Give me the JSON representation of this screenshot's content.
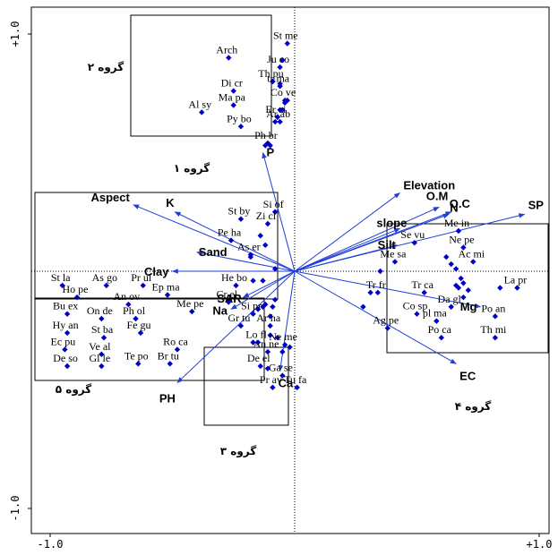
{
  "chart_data": {
    "type": "scatter",
    "title": "",
    "xlabel": "",
    "ylabel": "",
    "xlim": [
      -1.0,
      1.0
    ],
    "ylim": [
      -1.0,
      1.0
    ],
    "tick_labels": {
      "x_min": "-1.0",
      "x_max": "+1.0",
      "y_min": "-1.0",
      "y_max": "+1.0"
    },
    "colors": {
      "arrow": "#1f3fd6",
      "point": "#0000c8",
      "box": "#000000"
    },
    "env_variables": [
      {
        "name": "Elevation",
        "x": 0.43,
        "y": 0.33
      },
      {
        "name": "O.M",
        "x": 0.59,
        "y": 0.27
      },
      {
        "name": "O.C",
        "x": 0.64,
        "y": 0.25
      },
      {
        "name": "N",
        "x": 0.63,
        "y": 0.24
      },
      {
        "name": "SP",
        "x": 0.94,
        "y": 0.24
      },
      {
        "name": "slope",
        "x": 0.43,
        "y": 0.18
      },
      {
        "name": "Silt",
        "x": 0.42,
        "y": 0.11
      },
      {
        "name": "Aspect",
        "x": -0.66,
        "y": 0.28
      },
      {
        "name": "K",
        "x": -0.49,
        "y": 0.25
      },
      {
        "name": "Sand",
        "x": -0.4,
        "y": 0.08
      },
      {
        "name": "Clay",
        "x": -0.5,
        "y": 0.0
      },
      {
        "name": "SAR",
        "x": -0.21,
        "y": -0.11
      },
      {
        "name": "Na",
        "x": -0.26,
        "y": -0.16
      },
      {
        "name": "Mg",
        "x": 0.76,
        "y": -0.15
      },
      {
        "name": "EC",
        "x": 0.66,
        "y": -0.39
      },
      {
        "name": "Ca",
        "x": -0.06,
        "y": -0.42
      },
      {
        "name": "PH",
        "x": -0.48,
        "y": -0.47
      },
      {
        "name": "P",
        "x": -0.13,
        "y": 0.5
      }
    ],
    "species": [
      {
        "name": "Arch",
        "x": -0.27,
        "y": 0.9
      },
      {
        "name": "St me",
        "x": -0.03,
        "y": 0.96
      },
      {
        "name": "Ju co",
        "x": -0.06,
        "y": 0.86
      },
      {
        "name": "Th pu",
        "x": -0.09,
        "y": 0.8
      },
      {
        "name": "tr ma",
        "x": -0.06,
        "y": 0.78
      },
      {
        "name": "Di cr",
        "x": -0.25,
        "y": 0.76
      },
      {
        "name": "Co ve",
        "x": -0.04,
        "y": 0.72
      },
      {
        "name": "Ma pa",
        "x": -0.25,
        "y": 0.7
      },
      {
        "name": "Al sy",
        "x": -0.38,
        "y": 0.67
      },
      {
        "name": "Er ci",
        "x": -0.07,
        "y": 0.65
      },
      {
        "name": "Ar ab",
        "x": -0.06,
        "y": 0.63
      },
      {
        "name": "Py bo",
        "x": -0.22,
        "y": 0.61
      },
      {
        "name": "Ph br",
        "x": -0.11,
        "y": 0.54
      },
      {
        "name": "Si of",
        "x": -0.08,
        "y": 0.25
      },
      {
        "name": "St by",
        "x": -0.22,
        "y": 0.22
      },
      {
        "name": "Zi cl",
        "x": -0.11,
        "y": 0.2
      },
      {
        "name": "Pe ha",
        "x": -0.26,
        "y": 0.13
      },
      {
        "name": "As er",
        "x": -0.18,
        "y": 0.07
      },
      {
        "name": "He bo",
        "x": -0.24,
        "y": -0.06
      },
      {
        "name": "Cr el",
        "x": -0.27,
        "y": -0.13
      },
      {
        "name": "Me pe",
        "x": -0.42,
        "y": -0.17
      },
      {
        "name": "Si pr",
        "x": -0.17,
        "y": -0.18
      },
      {
        "name": "Gr tu",
        "x": -0.22,
        "y": -0.23
      },
      {
        "name": "Ar ha",
        "x": -0.1,
        "y": -0.23
      },
      {
        "name": "Lo fl",
        "x": -0.15,
        "y": -0.3
      },
      {
        "name": "Ne me",
        "x": -0.04,
        "y": -0.31
      },
      {
        "name": "An ne",
        "x": -0.11,
        "y": -0.34
      },
      {
        "name": "De el",
        "x": -0.14,
        "y": -0.4
      },
      {
        "name": "Ga se",
        "x": -0.05,
        "y": -0.44
      },
      {
        "name": "Pr av",
        "x": -0.09,
        "y": -0.49
      },
      {
        "name": "Tu fa",
        "x": 0.01,
        "y": -0.49
      },
      {
        "name": "St la",
        "x": -0.95,
        "y": -0.06
      },
      {
        "name": "As go",
        "x": -0.77,
        "y": -0.06
      },
      {
        "name": "Pr ul",
        "x": -0.62,
        "y": -0.06
      },
      {
        "name": "Ho pe",
        "x": -0.89,
        "y": -0.11
      },
      {
        "name": "An ov",
        "x": -0.68,
        "y": -0.14
      },
      {
        "name": "Ep ma",
        "x": -0.52,
        "y": -0.1
      },
      {
        "name": "Bu ex",
        "x": -0.93,
        "y": -0.18
      },
      {
        "name": "On de",
        "x": -0.79,
        "y": -0.2
      },
      {
        "name": "Ph ol",
        "x": -0.65,
        "y": -0.2
      },
      {
        "name": "Hy an",
        "x": -0.93,
        "y": -0.26
      },
      {
        "name": "Fe gu",
        "x": -0.63,
        "y": -0.26
      },
      {
        "name": "St ba",
        "x": -0.78,
        "y": -0.28
      },
      {
        "name": "Ro ca",
        "x": -0.48,
        "y": -0.33
      },
      {
        "name": "Ec pu",
        "x": -0.94,
        "y": -0.33
      },
      {
        "name": "Ve al",
        "x": -0.79,
        "y": -0.35
      },
      {
        "name": "Te po",
        "x": -0.64,
        "y": -0.39
      },
      {
        "name": "Br tu",
        "x": -0.51,
        "y": -0.39
      },
      {
        "name": "De so",
        "x": -0.93,
        "y": -0.4
      },
      {
        "name": "Gl le",
        "x": -0.79,
        "y": -0.4
      },
      {
        "name": "Me in",
        "x": 0.67,
        "y": 0.17
      },
      {
        "name": "Se vu",
        "x": 0.49,
        "y": 0.12
      },
      {
        "name": "Ne pe",
        "x": 0.69,
        "y": 0.1
      },
      {
        "name": "Me sa",
        "x": 0.41,
        "y": 0.04
      },
      {
        "name": "Ac mi",
        "x": 0.73,
        "y": 0.04
      },
      {
        "name": "Tr fr",
        "x": 0.34,
        "y": -0.09
      },
      {
        "name": "Tr ca",
        "x": 0.53,
        "y": -0.09
      },
      {
        "name": "La pr",
        "x": 0.91,
        "y": -0.07
      },
      {
        "name": "Da gl",
        "x": 0.64,
        "y": -0.15
      },
      {
        "name": "Co sp",
        "x": 0.5,
        "y": -0.18
      },
      {
        "name": "pl ma",
        "x": 0.58,
        "y": -0.21
      },
      {
        "name": "Po an",
        "x": 0.82,
        "y": -0.19
      },
      {
        "name": "Ag pe",
        "x": 0.38,
        "y": -0.24
      },
      {
        "name": "Po ca",
        "x": 0.6,
        "y": -0.28
      },
      {
        "name": "Th mi",
        "x": 0.82,
        "y": -0.28
      }
    ],
    "unlabeled_points": [
      {
        "x": -0.05,
        "y": 0.89
      },
      {
        "x": -0.09,
        "y": 0.8
      },
      {
        "x": -0.06,
        "y": 0.79
      },
      {
        "x": -0.04,
        "y": 0.71
      },
      {
        "x": -0.03,
        "y": 0.72
      },
      {
        "x": -0.05,
        "y": 0.68
      },
      {
        "x": -0.06,
        "y": 0.68
      },
      {
        "x": -0.08,
        "y": 0.63
      },
      {
        "x": -0.07,
        "y": 0.65
      },
      {
        "x": -0.12,
        "y": 0.53
      },
      {
        "x": -0.1,
        "y": 0.53
      },
      {
        "x": -0.14,
        "y": 0.15
      },
      {
        "x": -0.12,
        "y": 0.11
      },
      {
        "x": -0.18,
        "y": 0.06
      },
      {
        "x": -0.08,
        "y": 0.01
      },
      {
        "x": -0.17,
        "y": -0.04
      },
      {
        "x": -0.13,
        "y": -0.04
      },
      {
        "x": -0.08,
        "y": -0.12
      },
      {
        "x": -0.15,
        "y": -0.16
      },
      {
        "x": -0.13,
        "y": -0.15
      },
      {
        "x": -0.12,
        "y": -0.14
      },
      {
        "x": -0.1,
        "y": -0.19
      },
      {
        "x": -0.09,
        "y": -0.15
      },
      {
        "x": -0.1,
        "y": -0.27
      },
      {
        "x": -0.07,
        "y": -0.28
      },
      {
        "x": -0.02,
        "y": -0.32
      },
      {
        "x": -0.05,
        "y": -0.34
      },
      {
        "x": -0.17,
        "y": -0.3
      },
      {
        "x": -0.11,
        "y": -0.41
      },
      {
        "x": 0.28,
        "y": -0.15
      },
      {
        "x": 0.31,
        "y": -0.09
      },
      {
        "x": 0.35,
        "y": 0.0
      },
      {
        "x": 0.62,
        "y": 0.06
      },
      {
        "x": 0.64,
        "y": 0.03
      },
      {
        "x": 0.66,
        "y": 0.01
      },
      {
        "x": 0.66,
        "y": -0.06
      },
      {
        "x": 0.67,
        "y": -0.07
      },
      {
        "x": 0.69,
        "y": -0.05
      },
      {
        "x": 0.71,
        "y": -0.08
      },
      {
        "x": 0.68,
        "y": -0.03
      },
      {
        "x": 0.84,
        "y": -0.07
      },
      {
        "x": 0.69,
        "y": -0.11
      }
    ]
  },
  "groups": [
    {
      "label": "گروه ۱"
    },
    {
      "label": "گروه ۲"
    },
    {
      "label": "گروه ۳"
    },
    {
      "label": "گروه ۴"
    },
    {
      "label": "گروه ۵"
    }
  ]
}
